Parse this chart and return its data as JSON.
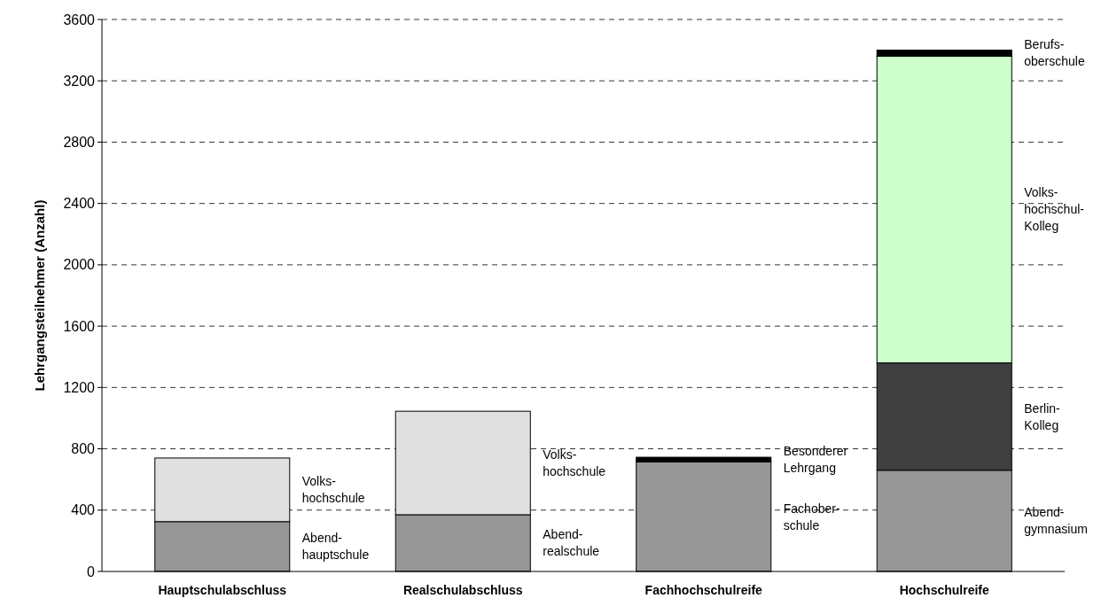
{
  "chart_data": {
    "type": "bar",
    "stacked": true,
    "ylabel": "Lehrgangsteilnehmer (Anzahl)",
    "categories": [
      "Hauptschulabschluss",
      "Realschulabschluss",
      "Fachhochschulreife",
      "Hochschulreife"
    ],
    "series": [
      {
        "color": "#969696",
        "values": [
          325,
          370,
          715,
          660
        ]
      },
      {
        "colors": [
          "#e0e0e0",
          "#e0e0e0",
          "#000000",
          "#404040"
        ],
        "values": [
          415,
          675,
          30,
          700
        ]
      },
      {
        "color": "#ccffcc",
        "values": [
          null,
          null,
          null,
          2000
        ]
      },
      {
        "color": "#000000",
        "values": [
          null,
          null,
          null,
          40
        ]
      }
    ],
    "annotations": [
      "Abend-\nhauptschule",
      "Volks-\nhochschule",
      "Abend-\nrealschule",
      "Volks-\nhochschule",
      "Fachober-\nschule",
      "Besonderer\nLehrgang",
      "Abend-\ngymnasium",
      "Berlin-\nKolleg",
      "Volks-\nhochschul-\nKolleg",
      "Berufs-\noberschule"
    ],
    "ylim": [
      0,
      3600
    ],
    "yticks": [
      0,
      400,
      800,
      1200,
      1600,
      2000,
      2400,
      2800,
      3200,
      3600
    ],
    "grid": "y"
  }
}
